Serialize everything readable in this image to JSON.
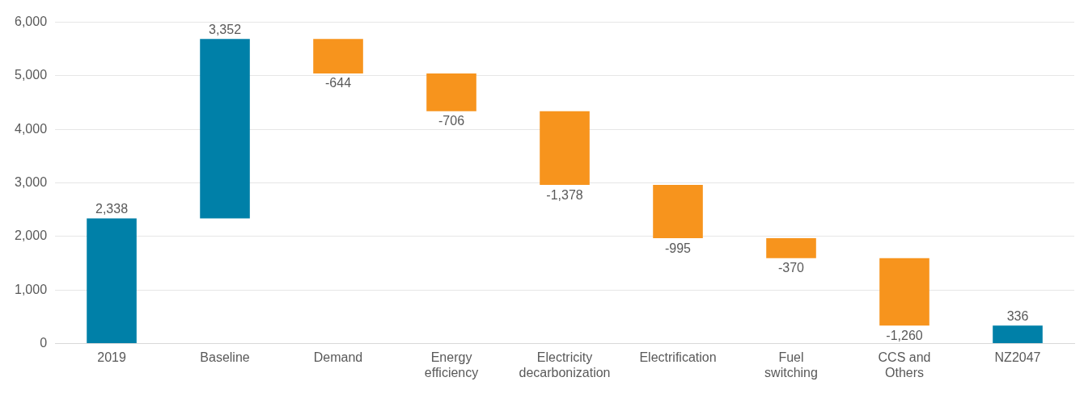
{
  "chart_data": {
    "type": "bar",
    "categories": [
      "2019",
      "Baseline",
      "Demand",
      "Energy efficiency",
      "Electricity decarbonization",
      "Electrification",
      "Fuel switching",
      "CCS and Others",
      "NZ2047"
    ],
    "values": [
      2338,
      3352,
      -644,
      -706,
      -1378,
      -995,
      -370,
      -1260,
      336
    ],
    "base": [
      0,
      2338,
      5690,
      5046,
      4340,
      2962,
      1967,
      1597,
      0
    ],
    "colors": [
      "#0080a8",
      "#0080a8",
      "#f7941d",
      "#f7941d",
      "#f7941d",
      "#f7941d",
      "#f7941d",
      "#f7941d",
      "#0080a8"
    ],
    "value_labels": [
      "2,338",
      "3,352",
      "-644",
      "-706",
      "-1,378",
      "-995",
      "-370",
      "-1,260",
      "336"
    ],
    "ylim": [
      0,
      6000
    ],
    "yticks": [
      {
        "value": 0,
        "label": "0"
      },
      {
        "value": 1000,
        "label": "1,000"
      },
      {
        "value": 2000,
        "label": "2,000"
      },
      {
        "value": 3000,
        "label": "3,000"
      },
      {
        "value": 4000,
        "label": "4,000"
      },
      {
        "value": 5000,
        "label": "5,000"
      },
      {
        "value": 6000,
        "label": "6,000"
      }
    ],
    "grid": "y",
    "legend": false
  }
}
